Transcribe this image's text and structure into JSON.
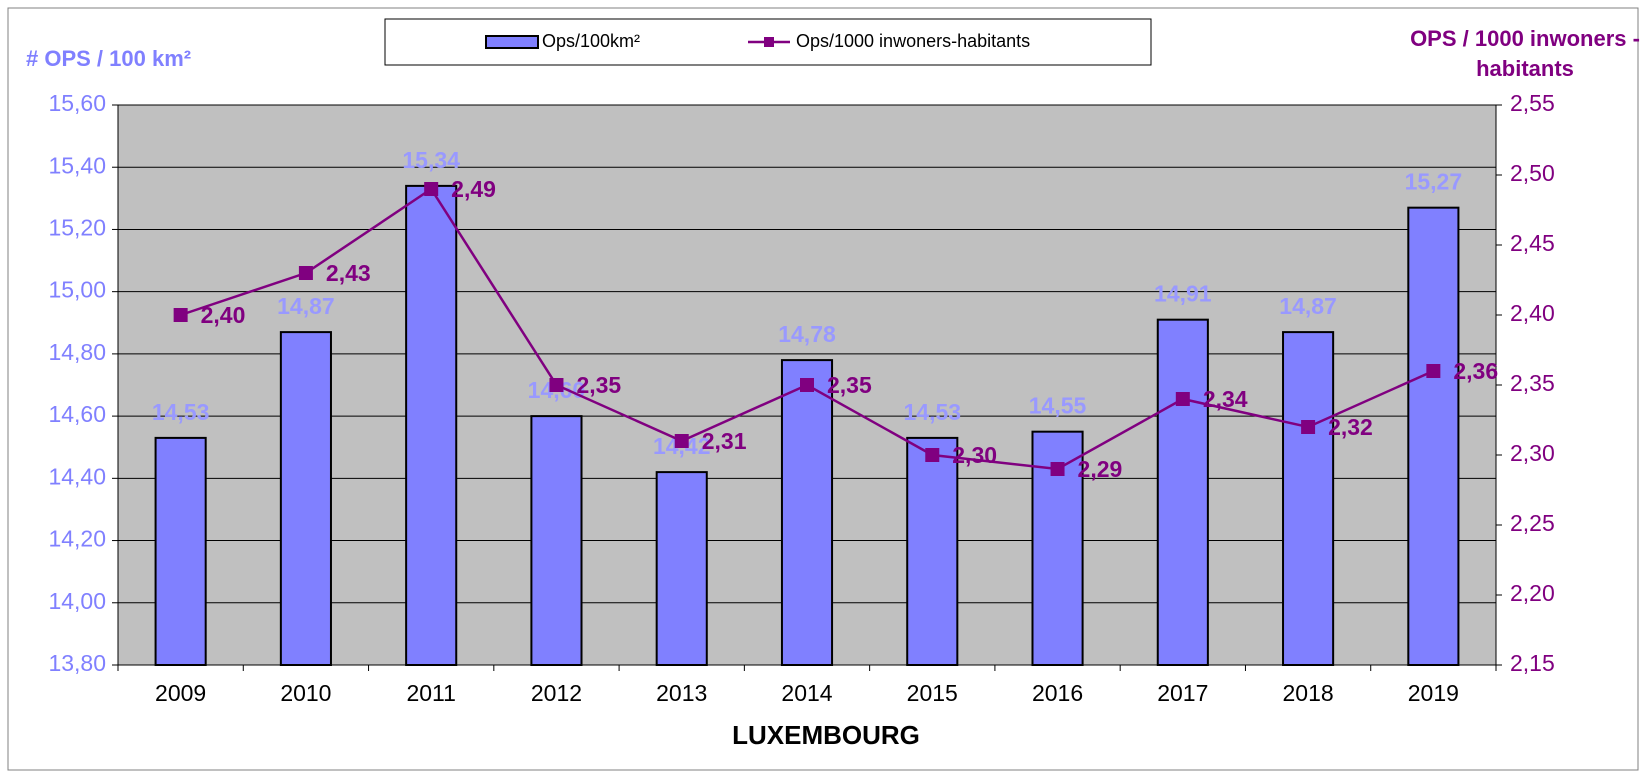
{
  "chart_data": {
    "type": "bar-line",
    "title": "LUXEMBOURG",
    "ylabel": "# OPS / 100 km²",
    "y2label": [
      "OPS / 1000 inwoners -",
      "habitants"
    ],
    "categories": [
      "2009",
      "2010",
      "2011",
      "2012",
      "2013",
      "2014",
      "2015",
      "2016",
      "2017",
      "2018",
      "2019"
    ],
    "series": [
      {
        "name": "Ops/100km²",
        "type": "bar",
        "color": "#8080ff",
        "label_color": "#9999ff",
        "values": [
          14.53,
          14.87,
          15.34,
          14.6,
          14.42,
          14.78,
          14.53,
          14.55,
          14.91,
          14.87,
          15.27
        ],
        "value_labels": [
          "14,53",
          "14,87",
          "15,34",
          "14,60",
          "14,42",
          "14,78",
          "14,53",
          "14,55",
          "14,91",
          "14,87",
          "15,27"
        ]
      },
      {
        "name": "Ops/1000 inwoners-habitants",
        "type": "line",
        "axis": "y2",
        "color": "#800080",
        "values": [
          2.4,
          2.43,
          2.49,
          2.35,
          2.31,
          2.35,
          2.3,
          2.29,
          2.34,
          2.32,
          2.36
        ],
        "value_labels": [
          "2,40",
          "2,43",
          "2,49",
          "2,35",
          "2,31",
          "2,35",
          "2,30",
          "2,29",
          "2,34",
          "2,32",
          "2,36"
        ]
      }
    ],
    "ylim": [
      13.8,
      15.6
    ],
    "yticks": [
      {
        "value": 13.8,
        "label": "13,80"
      },
      {
        "value": 14.0,
        "label": "14,00"
      },
      {
        "value": 14.2,
        "label": "14,20"
      },
      {
        "value": 14.4,
        "label": "14,40"
      },
      {
        "value": 14.6,
        "label": "14,60"
      },
      {
        "value": 14.8,
        "label": "14,80"
      },
      {
        "value": 15.0,
        "label": "15,00"
      },
      {
        "value": 15.2,
        "label": "15,20"
      },
      {
        "value": 15.4,
        "label": "15,40"
      },
      {
        "value": 15.6,
        "label": "15,60"
      }
    ],
    "y2lim": [
      2.15,
      2.55
    ],
    "y2ticks": [
      {
        "value": 2.15,
        "label": "2,15"
      },
      {
        "value": 2.2,
        "label": "2,20"
      },
      {
        "value": 2.25,
        "label": "2,25"
      },
      {
        "value": 2.3,
        "label": "2,30"
      },
      {
        "value": 2.35,
        "label": "2,35"
      },
      {
        "value": 2.4,
        "label": "2,40"
      },
      {
        "value": 2.45,
        "label": "2,45"
      },
      {
        "value": 2.5,
        "label": "2,50"
      },
      {
        "value": 2.55,
        "label": "2,55"
      }
    ],
    "grid": true,
    "plot_background": "#c0c0c0",
    "legend": "top"
  }
}
